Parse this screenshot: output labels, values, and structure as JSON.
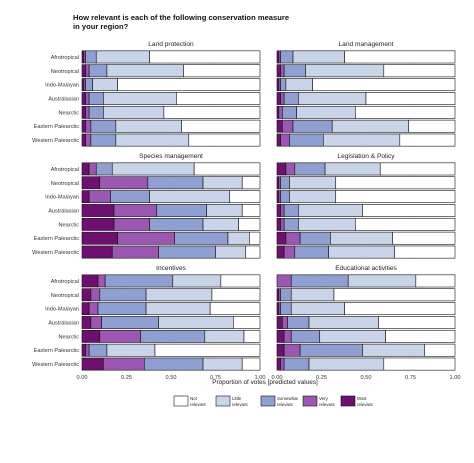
{
  "chart_data": {
    "type": "bar",
    "orientation": "horizontal-stacked",
    "title": "How relevant is each of the following conservation measure in your region?",
    "xlabel": "Proportion of votes [predicted values]",
    "xticks": [
      "0.00",
      "0.25",
      "0.50",
      "0.75",
      "1.00"
    ],
    "xlim": [
      0,
      1
    ],
    "categories": [
      "Afrotropical",
      "Neotropical",
      "Indo-Malayan",
      "Australasian",
      "Nearctic",
      "Eastern Palearctic",
      "Western Palearctic"
    ],
    "response_levels": [
      {
        "label_line1": "Not",
        "label_line2": "relevant",
        "color": "#ffffff"
      },
      {
        "label_line1": "Little",
        "label_line2": "relevant",
        "color": "#c9d4e9"
      },
      {
        "label_line1": "Somewhat",
        "label_line2": "relevant",
        "color": "#8f9fd2"
      },
      {
        "label_line1": "Very",
        "label_line2": "relevant",
        "color": "#9b57b2"
      },
      {
        "label_line1": "Most",
        "label_line2": "relevant",
        "color": "#6f0f70"
      }
    ],
    "legend_position": "bottom",
    "panels": [
      {
        "title": "Land protection",
        "segments": [
          [
            0.62,
            0.3,
            0.06,
            0.01,
            0.01
          ],
          [
            0.43,
            0.43,
            0.1,
            0.02,
            0.02
          ],
          [
            0.8,
            0.14,
            0.04,
            0.01,
            0.01
          ],
          [
            0.47,
            0.41,
            0.08,
            0.02,
            0.02
          ],
          [
            0.54,
            0.34,
            0.08,
            0.02,
            0.02
          ],
          [
            0.44,
            0.37,
            0.14,
            0.03,
            0.02
          ],
          [
            0.4,
            0.41,
            0.14,
            0.03,
            0.02
          ]
        ]
      },
      {
        "title": "Land management",
        "segments": [
          [
            0.62,
            0.29,
            0.07,
            0.01,
            0.01
          ],
          [
            0.4,
            0.44,
            0.12,
            0.02,
            0.02
          ],
          [
            0.8,
            0.15,
            0.03,
            0.01,
            0.01
          ],
          [
            0.5,
            0.38,
            0.08,
            0.02,
            0.02
          ],
          [
            0.56,
            0.33,
            0.08,
            0.02,
            0.01
          ],
          [
            0.26,
            0.43,
            0.22,
            0.06,
            0.03
          ],
          [
            0.31,
            0.43,
            0.19,
            0.05,
            0.02
          ]
        ]
      },
      {
        "title": "Species management",
        "segments": [
          [
            0.37,
            0.46,
            0.09,
            0.04,
            0.04
          ],
          [
            0.1,
            0.22,
            0.31,
            0.27,
            0.1
          ],
          [
            0.17,
            0.45,
            0.22,
            0.12,
            0.04
          ],
          [
            0.1,
            0.2,
            0.28,
            0.24,
            0.18
          ],
          [
            0.12,
            0.2,
            0.3,
            0.2,
            0.18
          ],
          [
            0.06,
            0.12,
            0.3,
            0.32,
            0.2
          ],
          [
            0.08,
            0.17,
            0.32,
            0.26,
            0.17
          ]
        ]
      },
      {
        "title": "Legislation & Policy",
        "segments": [
          [
            0.42,
            0.31,
            0.17,
            0.05,
            0.05
          ],
          [
            0.67,
            0.26,
            0.05,
            0.01,
            0.01
          ],
          [
            0.67,
            0.26,
            0.05,
            0.01,
            0.01
          ],
          [
            0.52,
            0.36,
            0.08,
            0.02,
            0.02
          ],
          [
            0.56,
            0.32,
            0.08,
            0.02,
            0.02
          ],
          [
            0.35,
            0.35,
            0.17,
            0.08,
            0.05
          ],
          [
            0.34,
            0.37,
            0.19,
            0.06,
            0.04
          ]
        ]
      },
      {
        "title": "Incentives",
        "segments": [
          [
            0.22,
            0.27,
            0.38,
            0.04,
            0.09
          ],
          [
            0.27,
            0.37,
            0.26,
            0.05,
            0.05
          ],
          [
            0.28,
            0.36,
            0.27,
            0.05,
            0.04
          ],
          [
            0.15,
            0.42,
            0.32,
            0.06,
            0.05
          ],
          [
            0.09,
            0.22,
            0.36,
            0.23,
            0.1
          ],
          [
            0.59,
            0.27,
            0.1,
            0.02,
            0.02
          ],
          [
            0.1,
            0.22,
            0.33,
            0.23,
            0.12
          ]
        ]
      },
      {
        "title": "Educational activities",
        "segments": [
          [
            0.22,
            0.38,
            0.32,
            0.08,
            0.0
          ],
          [
            0.68,
            0.24,
            0.06,
            0.01,
            0.01
          ],
          [
            0.62,
            0.3,
            0.06,
            0.01,
            0.01
          ],
          [
            0.43,
            0.39,
            0.12,
            0.03,
            0.03
          ],
          [
            0.39,
            0.37,
            0.16,
            0.04,
            0.04
          ],
          [
            0.17,
            0.35,
            0.35,
            0.09,
            0.04
          ],
          [
            0.4,
            0.42,
            0.14,
            0.02,
            0.02
          ]
        ]
      }
    ]
  }
}
